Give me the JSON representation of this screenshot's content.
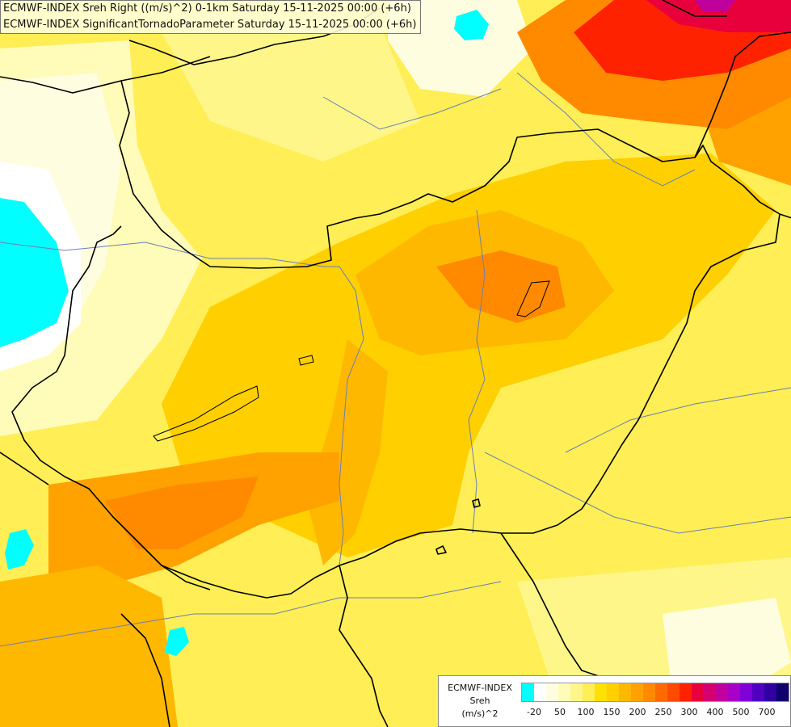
{
  "header": {
    "line1": "ECMWF-INDEX Sreh Right ((m/s)^2) 0-1km Saturday 15-11-2025 00:00 (+6h)",
    "line2": "ECMWF-INDEX SignificantTornadoParameter Saturday 15-11-2025 00:00 (+6h)"
  },
  "legend": {
    "source": "ECMWF-INDEX",
    "variable": "Sreh",
    "unit": "(m/s)^2",
    "colors": [
      "#00ffff",
      "#ffffff",
      "#fffde0",
      "#fffbb8",
      "#fff68a",
      "#ffee55",
      "#ffe000",
      "#ffcf00",
      "#ffb800",
      "#ffa200",
      "#ff8a00",
      "#ff6a00",
      "#ff4a00",
      "#ff2200",
      "#e8003c",
      "#d4006e",
      "#c0009c",
      "#a800c8",
      "#8000d8",
      "#5000c0",
      "#3000a0",
      "#10006e"
    ],
    "ticks": [
      "-20",
      "50",
      "100",
      "150",
      "200",
      "250",
      "300",
      "400",
      "500",
      "700"
    ]
  },
  "map": {
    "colors": {
      "land_low": "#fffbb8",
      "land_mid": "#ffee55",
      "land_high": "#ffcf00",
      "orange": "#ffa200",
      "deep_orange": "#ff8a00",
      "red": "#ff2200",
      "magenta": "#e8003c",
      "cyan": "#00ffff",
      "border": "#000000",
      "river": "#6b7fb0"
    }
  }
}
